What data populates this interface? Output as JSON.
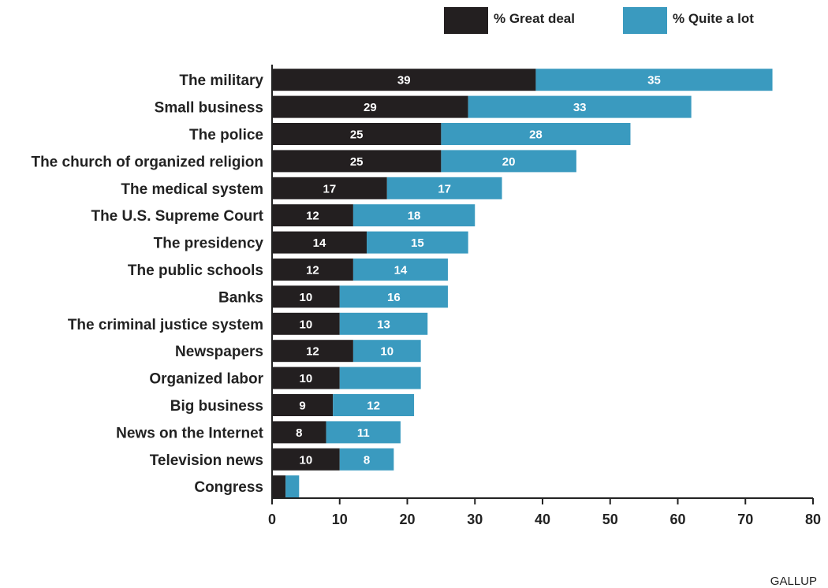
{
  "chart_data": {
    "type": "bar",
    "orientation": "horizontal",
    "stacked": true,
    "categories": [
      "The military",
      "Small business",
      "The police",
      "The church of organized religion",
      "The medical system",
      "The U.S. Supreme Court",
      "The presidency",
      "The public schools",
      "Banks",
      "The criminal justice system",
      "Newspapers",
      "Organized labor",
      "Big business",
      "News on the Internet",
      "Television news",
      "Congress"
    ],
    "series": [
      {
        "name": "% Great deal",
        "color": "#231f20",
        "values": [
          39,
          29,
          25,
          25,
          17,
          12,
          14,
          12,
          10,
          10,
          12,
          10,
          9,
          8,
          10,
          2
        ],
        "labels": [
          "39",
          "29",
          "25",
          "25",
          "17",
          "12",
          "14",
          "12",
          "10",
          "10",
          "12",
          "10",
          "9",
          "8",
          "10",
          ""
        ]
      },
      {
        "name": "% Quite a lot",
        "color": "#3a9abf",
        "values": [
          35,
          33,
          28,
          20,
          17,
          18,
          15,
          14,
          16,
          13,
          10,
          12,
          12,
          11,
          8,
          2
        ],
        "labels": [
          "35",
          "33",
          "28",
          "20",
          "17",
          "18",
          "15",
          "14",
          "16",
          "13",
          "10",
          "",
          "12",
          "11",
          "8",
          ""
        ]
      }
    ],
    "xlim": [
      0,
      80
    ],
    "xticks": [
      "0",
      "10",
      "20",
      "30",
      "40",
      "50",
      "60",
      "70",
      "80"
    ],
    "grid": false,
    "legend_position": "top-right",
    "source": "GALLUP"
  }
}
